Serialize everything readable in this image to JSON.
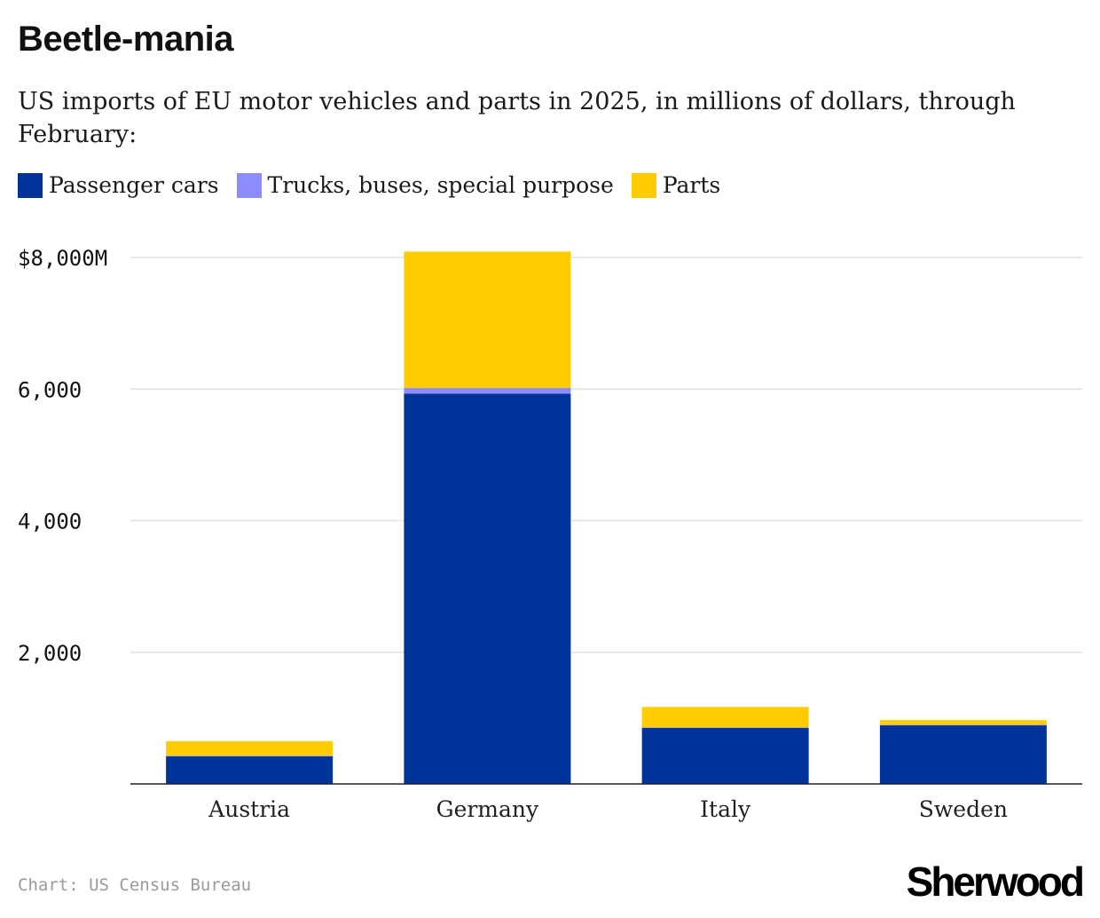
{
  "header": {
    "title": "Beetle-mania",
    "subtitle": "US imports of EU motor vehicles and parts in 2025, in millions of dollars, through February:"
  },
  "legend": [
    {
      "label": "Passenger cars",
      "color": "#003399"
    },
    {
      "label": "Trucks, buses, special purpose",
      "color": "#8c8cff"
    },
    {
      "label": "Parts",
      "color": "#ffcc00"
    }
  ],
  "footer": {
    "source": "Chart: US Census Bureau",
    "logo": "Sherwood"
  },
  "chart_data": {
    "type": "bar",
    "stacked": true,
    "categories": [
      "Austria",
      "Germany",
      "Italy",
      "Sweden"
    ],
    "series": [
      {
        "name": "Passenger cars",
        "color": "#003399",
        "values": [
          420,
          5930,
          850,
          890
        ]
      },
      {
        "name": "Trucks, buses, special purpose",
        "color": "#8c8cff",
        "values": [
          10,
          90,
          10,
          10
        ]
      },
      {
        "name": "Parts",
        "color": "#ffcc00",
        "values": [
          220,
          2070,
          310,
          70
        ]
      }
    ],
    "ylim": [
      0,
      8000
    ],
    "yticks": [
      {
        "value": 2000,
        "label": "2,000"
      },
      {
        "value": 4000,
        "label": "4,000"
      },
      {
        "value": 6000,
        "label": "6,000"
      },
      {
        "value": 8000,
        "label": "$8,000M"
      }
    ],
    "grid": true,
    "legend_position": "top-left"
  }
}
